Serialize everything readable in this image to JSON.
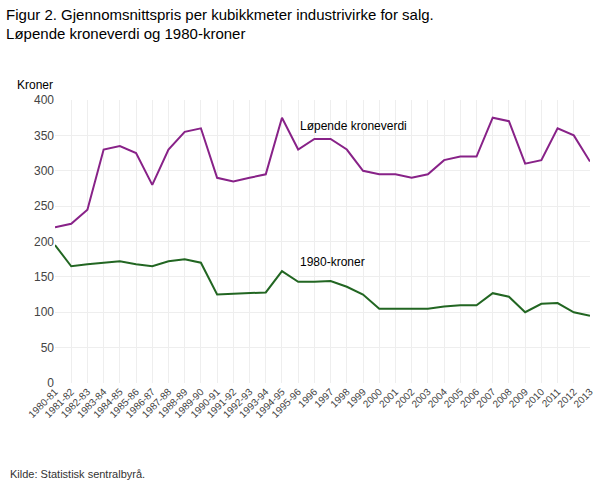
{
  "chart_data": {
    "type": "line",
    "title": "Figur 2. Gjennomsnittspris per kubikkmeter industrivirke for salg.",
    "subtitle": "Løpende kroneverdi og 1980-kroner",
    "ylabel": "Kroner",
    "source": "Kilde: Statistisk sentralbyrå.",
    "categories": [
      "1980-81",
      "1981-82",
      "1982-83",
      "1983-84",
      "1984-85",
      "1985-86",
      "1986-87",
      "1987-88",
      "1988-89",
      "1989-90",
      "1990-91",
      "1991-92",
      "1992-93",
      "1993-94",
      "1994-95",
      "1995-96",
      "1996",
      "1997",
      "1998",
      "1999",
      "2000",
      "2001",
      "2002",
      "2003",
      "2004",
      "2005",
      "2006",
      "2007",
      "2008",
      "2009",
      "2010",
      "2011",
      "2012",
      "2013"
    ],
    "series": [
      {
        "name": "Løpende kroneverdi",
        "color": "#882288",
        "values": [
          220,
          225,
          245,
          330,
          335,
          325,
          280,
          330,
          355,
          360,
          290,
          285,
          290,
          295,
          375,
          330,
          345,
          345,
          330,
          300,
          295,
          295,
          290,
          295,
          315,
          320,
          320,
          375,
          370,
          310,
          315,
          360,
          350,
          313
        ]
      },
      {
        "name": "1980-kroner",
        "color": "#226622",
        "values": [
          195,
          165,
          168,
          170,
          172,
          168,
          165,
          172,
          175,
          170,
          125,
          126,
          127,
          128,
          158,
          143,
          143,
          144,
          136,
          125,
          105,
          105,
          104,
          105,
          108,
          110,
          110,
          127,
          122,
          100,
          112,
          113,
          100,
          95
        ]
      }
    ],
    "annotations": [
      {
        "text": "Løpende kroneverdi",
        "x": "1995-96",
        "y": 350
      },
      {
        "text": "1980-kroner",
        "x": "1995-96",
        "y": 158
      }
    ],
    "ylim": [
      0,
      400
    ],
    "yticks": [
      0,
      50,
      100,
      150,
      200,
      250,
      300,
      350,
      400
    ],
    "grid": true
  }
}
